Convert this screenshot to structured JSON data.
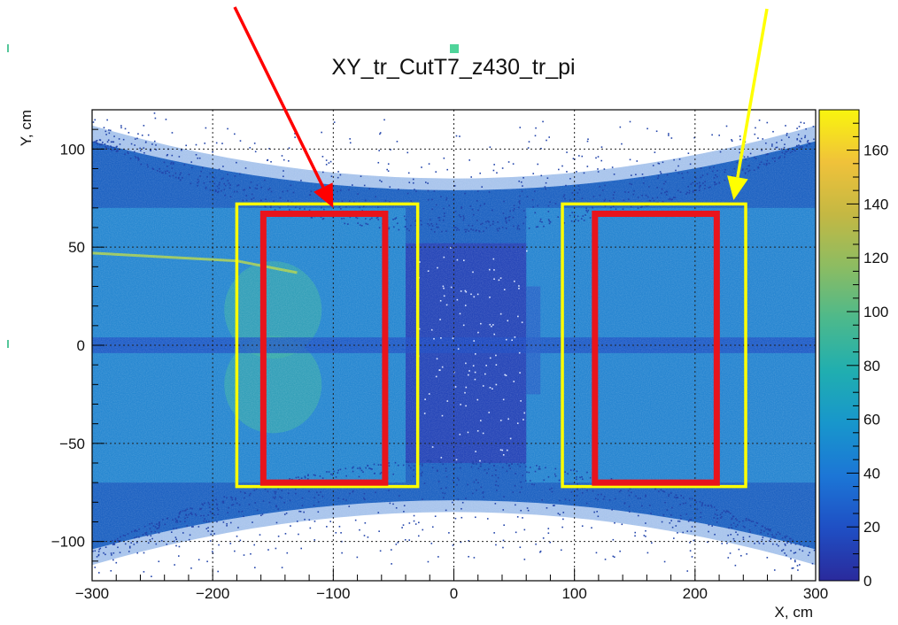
{
  "chart_data": {
    "type": "heatmap",
    "title": "XY_tr_CutT7_z430_tr_pi",
    "xlabel": "X, cm",
    "ylabel": "Y, cm",
    "xlim": [
      -300,
      300
    ],
    "ylim": [
      -120,
      120
    ],
    "x_ticks": [
      -300,
      -200,
      -100,
      0,
      100,
      200,
      300
    ],
    "y_ticks": [
      -100,
      -50,
      0,
      50,
      100
    ],
    "grid": true,
    "colorbar": {
      "range": [
        0,
        175
      ],
      "ticks": [
        0,
        20,
        40,
        60,
        80,
        100,
        120,
        140,
        160
      ]
    },
    "regions": [
      {
        "color": "#ffff00",
        "x": [
          -180,
          -30
        ],
        "y": [
          -72,
          72
        ]
      },
      {
        "color": "#e8141c",
        "x": [
          -158,
          -57
        ],
        "y": [
          -70,
          67
        ]
      },
      {
        "color": "#ffff00",
        "x": [
          90,
          242
        ],
        "y": [
          -72,
          72
        ]
      },
      {
        "color": "#e8141c",
        "x": [
          117,
          218
        ],
        "y": [
          -70,
          67
        ]
      }
    ],
    "arrows": [
      {
        "color": "#ff0000",
        "target": [
          -100,
          70
        ]
      },
      {
        "color": "#ffff00",
        "target": [
          232,
          74
        ]
      }
    ]
  },
  "colors": {
    "background_fill": "#1f63c2",
    "palette": [
      "#2a2a9c",
      "#1f4fc4",
      "#1c76d6",
      "#1896cc",
      "#20aeb0",
      "#4cb98c",
      "#8cbc62",
      "#c4b843",
      "#f0c23a",
      "#f9f50e"
    ]
  }
}
